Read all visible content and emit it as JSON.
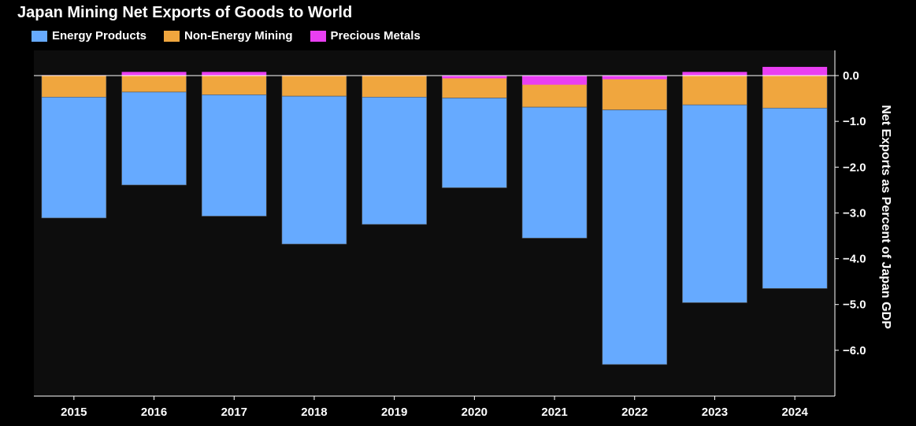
{
  "chart_data": {
    "type": "bar",
    "stacked": true,
    "title": "Japan Mining Net Exports of Goods to World",
    "ylabel": "Net Exports as Percent of Japan GDP",
    "xlabel": "",
    "categories": [
      "2015",
      "2016",
      "2017",
      "2018",
      "2019",
      "2020",
      "2021",
      "2022",
      "2023",
      "2024"
    ],
    "ylim": [
      -7.0,
      0.55
    ],
    "yticks": [
      0.0,
      -1.0,
      -2.0,
      -3.0,
      -4.0,
      -5.0,
      -6.0
    ],
    "ytick_labels": [
      "0.0",
      "−1.0",
      "−2.0",
      "−3.0",
      "−4.0",
      "−5.0",
      "−6.0"
    ],
    "y_axis_position": "right",
    "legend_position": "top-left",
    "grid": false,
    "series": [
      {
        "name": "Non-Energy Mining",
        "color": "#F0A63E",
        "values": [
          -0.47,
          -0.36,
          -0.42,
          -0.45,
          -0.47,
          -0.49,
          -0.69,
          -0.75,
          -0.64,
          -0.71
        ]
      },
      {
        "name": "Energy Products",
        "color": "#66AAFF",
        "values": [
          -2.64,
          -2.03,
          -2.65,
          -3.23,
          -2.78,
          -1.96,
          -2.86,
          -5.56,
          -4.32,
          -3.94
        ]
      },
      {
        "name": "Precious Metals",
        "color": "#E93FF2",
        "values": [
          0.01,
          0.08,
          0.08,
          0.01,
          0.01,
          -0.06,
          -0.2,
          -0.08,
          0.08,
          0.19
        ]
      }
    ],
    "legend_order": [
      "Energy Products",
      "Non-Energy Mining",
      "Precious Metals"
    ]
  },
  "style": {
    "background": "#000000",
    "plot_background": "#0D0D0D",
    "text_color": "#FFFFFF"
  }
}
